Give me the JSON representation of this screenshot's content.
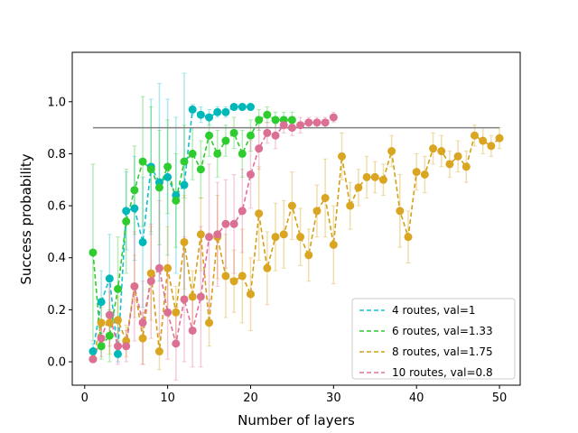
{
  "chart_data": {
    "type": "line",
    "title": "",
    "xlabel": "Number of layers",
    "ylabel": "Success probability",
    "xlim": [
      -1.5,
      52.5
    ],
    "ylim": [
      -0.09,
      1.19
    ],
    "xticks": [
      0,
      10,
      20,
      30,
      40,
      50
    ],
    "yticks": [
      0.0,
      0.2,
      0.4,
      0.6,
      0.8,
      1.0
    ],
    "xtick_labels": [
      "0",
      "10",
      "20",
      "30",
      "40",
      "50"
    ],
    "ytick_labels": [
      "0.0",
      "0.2",
      "0.4",
      "0.6",
      "0.8",
      "1.0"
    ],
    "legend_position": "lower-right",
    "reference_line": {
      "y": 0.9,
      "x_range": [
        1,
        50
      ],
      "color": "#808080"
    },
    "series": [
      {
        "name": "4 routes, val=1",
        "color": "#17becf",
        "marker_color": "#00b8b8",
        "x": [
          1,
          2,
          3,
          4,
          5,
          6,
          7,
          8,
          9,
          10,
          11,
          12,
          13,
          14,
          15,
          16,
          17,
          18,
          19,
          20
        ],
        "y": [
          0.04,
          0.23,
          0.32,
          0.03,
          0.58,
          0.59,
          0.46,
          0.75,
          0.69,
          0.71,
          0.64,
          0.68,
          0.97,
          0.95,
          0.94,
          0.96,
          0.96,
          0.98,
          0.98,
          0.98
        ],
        "err": [
          0.03,
          0.12,
          0.17,
          0.03,
          0.15,
          0.2,
          0.25,
          0.26,
          0.38,
          0.3,
          0.3,
          0.43,
          0.02,
          0.03,
          0.03,
          0.02,
          0.02,
          0.01,
          0.01,
          0.01
        ]
      },
      {
        "name": "6 routes, val=1.33",
        "color": "#2ecc2e",
        "marker_color": "#2ecc2e",
        "x": [
          1,
          2,
          3,
          4,
          5,
          6,
          7,
          8,
          9,
          10,
          11,
          12,
          13,
          14,
          15,
          16,
          17,
          18,
          19,
          20,
          21,
          22,
          23,
          24,
          25
        ],
        "y": [
          0.42,
          0.06,
          0.1,
          0.28,
          0.54,
          0.66,
          0.77,
          0.74,
          0.67,
          0.75,
          0.62,
          0.77,
          0.8,
          0.74,
          0.87,
          0.8,
          0.85,
          0.88,
          0.8,
          0.87,
          0.93,
          0.95,
          0.93,
          0.93,
          0.93
        ],
        "err": [
          0.34,
          0.05,
          0.1,
          0.2,
          0.2,
          0.17,
          0.25,
          0.24,
          0.22,
          0.18,
          0.18,
          0.14,
          0.1,
          0.11,
          0.08,
          0.09,
          0.06,
          0.06,
          0.09,
          0.06,
          0.04,
          0.03,
          0.03,
          0.03,
          0.03
        ]
      },
      {
        "name": "8 routes, val=1.75",
        "color": "#d4a017",
        "marker_color": "#daa520",
        "x": [
          1,
          2,
          3,
          4,
          5,
          6,
          7,
          8,
          9,
          10,
          11,
          12,
          13,
          14,
          15,
          16,
          17,
          18,
          19,
          20,
          21,
          22,
          23,
          24,
          25,
          26,
          27,
          28,
          29,
          30,
          31,
          32,
          33,
          34,
          35,
          36,
          37,
          38,
          39,
          40,
          41,
          42,
          43,
          44,
          45,
          46,
          47,
          48,
          49,
          50
        ],
        "y": [
          0.01,
          0.15,
          0.15,
          0.16,
          0.08,
          0.29,
          0.09,
          0.34,
          0.04,
          0.36,
          0.19,
          0.46,
          0.25,
          0.49,
          0.15,
          0.48,
          0.33,
          0.31,
          0.33,
          0.26,
          0.57,
          0.36,
          0.48,
          0.49,
          0.6,
          0.48,
          0.41,
          0.58,
          0.63,
          0.45,
          0.79,
          0.6,
          0.67,
          0.71,
          0.71,
          0.7,
          0.81,
          0.58,
          0.48,
          0.73,
          0.72,
          0.82,
          0.81,
          0.76,
          0.79,
          0.75,
          0.87,
          0.85,
          0.83,
          0.86
        ],
        "err": [
          0.01,
          0.06,
          0.12,
          0.09,
          0.06,
          0.12,
          0.1,
          0.18,
          0.07,
          0.16,
          0.1,
          0.18,
          0.1,
          0.14,
          0.09,
          0.16,
          0.16,
          0.12,
          0.18,
          0.14,
          0.18,
          0.14,
          0.13,
          0.13,
          0.13,
          0.11,
          0.1,
          0.1,
          0.15,
          0.15,
          0.09,
          0.09,
          0.07,
          0.08,
          0.06,
          0.06,
          0.06,
          0.14,
          0.1,
          0.07,
          0.07,
          0.06,
          0.06,
          0.05,
          0.06,
          0.06,
          0.04,
          0.05,
          0.04,
          0.04
        ]
      },
      {
        "name": "10 routes, val=0.8",
        "color": "#e0709a",
        "marker_color": "#db7093",
        "x": [
          1,
          2,
          3,
          4,
          5,
          6,
          7,
          8,
          9,
          10,
          11,
          12,
          13,
          14,
          15,
          16,
          17,
          18,
          19,
          20,
          21,
          22,
          23,
          24,
          25,
          26,
          27,
          28,
          29,
          30
        ],
        "y": [
          0.01,
          0.09,
          0.18,
          0.06,
          0.06,
          0.29,
          0.15,
          0.31,
          0.36,
          0.19,
          0.07,
          0.24,
          0.12,
          0.25,
          0.48,
          0.49,
          0.53,
          0.53,
          0.58,
          0.72,
          0.82,
          0.88,
          0.87,
          0.91,
          0.9,
          0.91,
          0.92,
          0.92,
          0.92,
          0.94
        ],
        "err": [
          0.01,
          0.07,
          0.12,
          0.07,
          0.06,
          0.21,
          0.16,
          0.22,
          0.26,
          0.18,
          0.14,
          0.24,
          0.14,
          0.27,
          0.28,
          0.2,
          0.17,
          0.19,
          0.16,
          0.13,
          0.08,
          0.04,
          0.05,
          0.03,
          0.03,
          0.03,
          0.02,
          0.02,
          0.02,
          0.02
        ]
      }
    ]
  }
}
